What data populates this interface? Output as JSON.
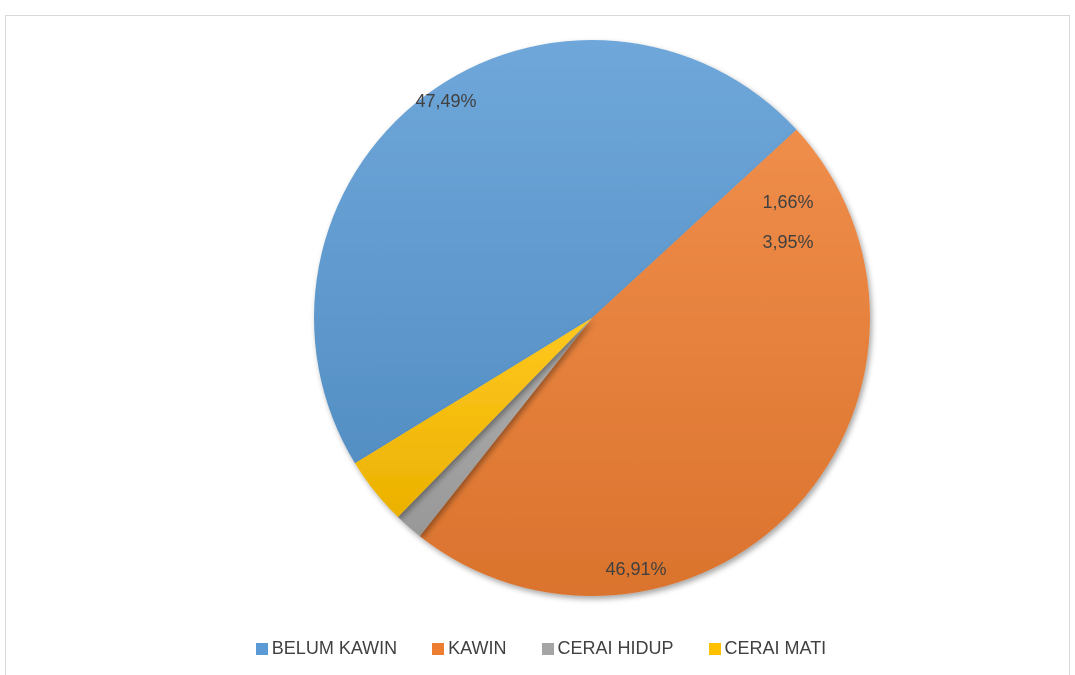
{
  "chart_data": {
    "type": "pie",
    "title": "",
    "legend_position": "bottom",
    "categories": [
      "BELUM KAWIN",
      "KAWIN",
      "CERAI HIDUP",
      "CERAI MATI"
    ],
    "values": [
      46.91,
      47.49,
      1.66,
      3.95
    ],
    "labels": [
      "46,91%",
      "47,49%",
      "1,66%",
      "3,95%"
    ],
    "colors": [
      "#5b9bd5",
      "#ed7d31",
      "#a5a5a5",
      "#ffc000"
    ],
    "start_category": "BELUM KAWIN",
    "direction": "clockwise"
  }
}
